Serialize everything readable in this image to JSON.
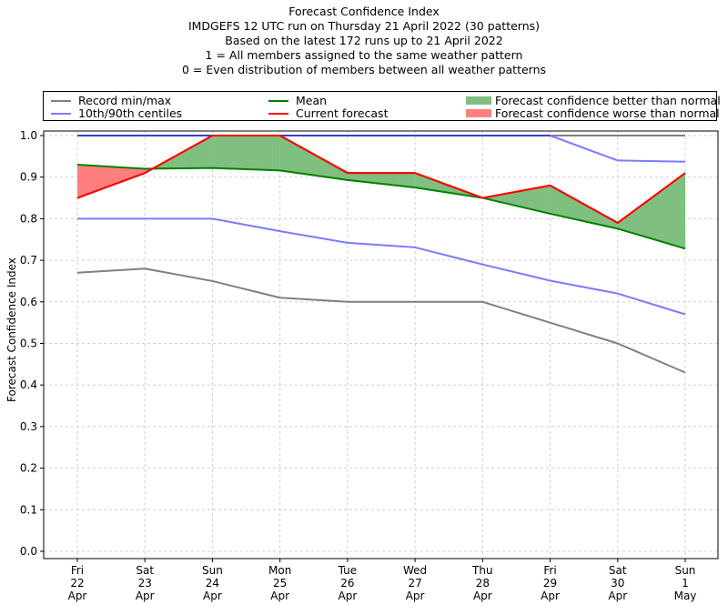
{
  "chart_data": {
    "type": "line",
    "title_lines": [
      "Forecast Confidence Index",
      "IMDGEFS 12 UTC run on Thursday 21 April 2022 (30 patterns)",
      "Based on the latest 172 runs up to 21 April 2022",
      "1 = All members assigned to the same weather pattern",
      "0 = Even distribution of members between all weather patterns"
    ],
    "xlabel": "",
    "ylabel": "Forecast Confidence Index",
    "ylim": [
      0,
      1
    ],
    "yticks": [
      "0.0",
      "0.1",
      "0.2",
      "0.3",
      "0.4",
      "0.5",
      "0.6",
      "0.7",
      "0.8",
      "0.9",
      "1.0"
    ],
    "grid": true,
    "categories": [
      {
        "dow": "Fri",
        "day": "22",
        "mon": "Apr"
      },
      {
        "dow": "Sat",
        "day": "23",
        "mon": "Apr"
      },
      {
        "dow": "Sun",
        "day": "24",
        "mon": "Apr"
      },
      {
        "dow": "Mon",
        "day": "25",
        "mon": "Apr"
      },
      {
        "dow": "Tue",
        "day": "26",
        "mon": "Apr"
      },
      {
        "dow": "Wed",
        "day": "27",
        "mon": "Apr"
      },
      {
        "dow": "Thu",
        "day": "28",
        "mon": "Apr"
      },
      {
        "dow": "Fri",
        "day": "29",
        "mon": "Apr"
      },
      {
        "dow": "Sat",
        "day": "30",
        "mon": "Apr"
      },
      {
        "dow": "Sun",
        "day": "1",
        "mon": "May"
      }
    ],
    "series": [
      {
        "name": "Record max",
        "legend": "Record min/max",
        "color": "#808080",
        "values": [
          1.0,
          1.0,
          1.0,
          1.0,
          1.0,
          1.0,
          1.0,
          1.0,
          1.0,
          1.0
        ]
      },
      {
        "name": "Record min",
        "legend": "Record min/max",
        "color": "#808080",
        "values": [
          0.67,
          0.68,
          0.65,
          0.61,
          0.6,
          0.6,
          0.6,
          0.55,
          0.5,
          0.43
        ]
      },
      {
        "name": "90th centile",
        "legend": "10th/90th centiles",
        "color": "#7b7bff",
        "values": [
          1.0,
          1.0,
          1.0,
          1.0,
          1.0,
          1.0,
          1.0,
          1.0,
          0.94,
          0.937
        ]
      },
      {
        "name": "10th centile",
        "legend": "10th/90th centiles",
        "color": "#7b7bff",
        "values": [
          0.8,
          0.8,
          0.8,
          0.77,
          0.742,
          0.731,
          0.69,
          0.651,
          0.62,
          0.57
        ]
      },
      {
        "name": "Mean",
        "legend": "Mean",
        "color": "#008000",
        "values": [
          0.93,
          0.92,
          0.922,
          0.916,
          0.893,
          0.875,
          0.85,
          0.812,
          0.776,
          0.728
        ]
      },
      {
        "name": "Current forecast",
        "legend": "Current forecast",
        "color": "#ff0000",
        "values": [
          0.85,
          0.91,
          1.0,
          1.0,
          0.91,
          0.91,
          0.85,
          0.88,
          0.79,
          0.91
        ]
      }
    ],
    "fills": [
      {
        "name": "Forecast confidence better than normal",
        "color": "#7fbf7f",
        "between": [
          "Current forecast",
          "Mean"
        ],
        "where": "forecast above mean"
      },
      {
        "name": "Forecast confidence worse than normal",
        "color": "#ff7f7f",
        "between": [
          "Current forecast",
          "Mean"
        ],
        "where": "forecast below mean"
      }
    ],
    "legend": {
      "placement": "top, above plot",
      "entries": [
        {
          "label": "Record min/max",
          "kind": "line",
          "color": "#808080"
        },
        {
          "label": "10th/90th centiles",
          "kind": "line",
          "color": "#7b7bff"
        },
        {
          "label": "Mean",
          "kind": "line",
          "color": "#008000"
        },
        {
          "label": "Current forecast",
          "kind": "line",
          "color": "#ff0000"
        },
        {
          "label": "Forecast confidence better than normal",
          "kind": "patch",
          "color": "#7fbf7f"
        },
        {
          "label": "Forecast confidence worse than normal",
          "kind": "patch",
          "color": "#ff7f7f"
        }
      ]
    }
  }
}
